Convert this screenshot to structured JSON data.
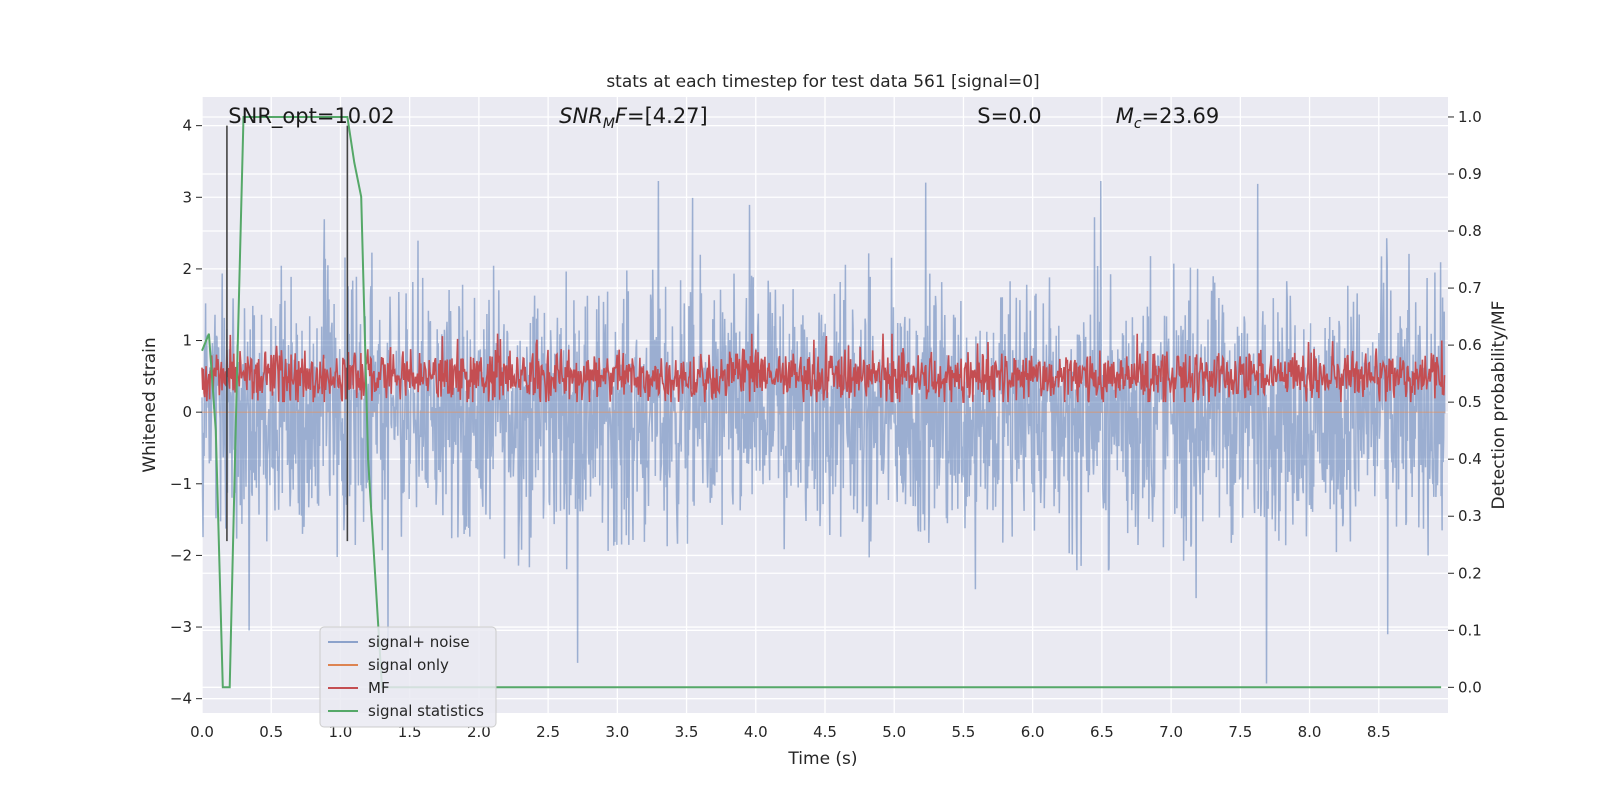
{
  "chart_data": {
    "type": "line",
    "title": "stats at each timestep for test data 561 [signal=0]",
    "xlabel": "Time (s)",
    "ylabel_left": "Whitened strain",
    "ylabel_right": "Detection probability/MF",
    "xlim": [
      0.0,
      9.0
    ],
    "ylim_left": [
      -4.2,
      4.4
    ],
    "ylim_right": [
      -0.045,
      1.035
    ],
    "x_ticks": [
      "0.0",
      "0.5",
      "1.0",
      "1.5",
      "2.0",
      "2.5",
      "3.0",
      "3.5",
      "4.0",
      "4.5",
      "5.0",
      "5.5",
      "6.0",
      "6.5",
      "7.0",
      "7.5",
      "8.0",
      "8.5"
    ],
    "y_ticks_left": [
      "4",
      "3",
      "2",
      "1",
      "0",
      "−1",
      "−2",
      "−3",
      "−4"
    ],
    "y_ticks_right": [
      "1.0",
      "0.9",
      "0.8",
      "0.7",
      "0.6",
      "0.5",
      "0.4",
      "0.3",
      "0.2",
      "0.1",
      "0.0"
    ],
    "annotations": [
      {
        "prefix": "SNR_opt",
        "eq": "=10.02"
      },
      {
        "prefix": "SNR",
        "sub": "M",
        "suffix": "F",
        "eq": "=[4.27]"
      },
      {
        "prefix": "S",
        "eq": "=0.0"
      },
      {
        "prefix": "M",
        "sub": "c",
        "eq": "=23.69"
      }
    ],
    "series": [
      {
        "name": "signal+ noise",
        "color": "#4c72b0",
        "axis": "left",
        "description": "noise band roughly between -3.8 and 4.0, mostly within ±2.2"
      },
      {
        "name": "signal only",
        "color": "#dd8452",
        "axis": "left",
        "description": "flat near zero"
      },
      {
        "name": "MF",
        "color": "#c44e52",
        "axis": "right",
        "description": "fluctuating between 0.50 and 0.62"
      },
      {
        "name": "signal statistics",
        "color": "#55a868",
        "axis": "right",
        "x": [
          0.0,
          0.05,
          0.1,
          0.15,
          0.2,
          0.25,
          0.3,
          0.4,
          0.5,
          0.6,
          0.7,
          0.8,
          0.9,
          1.0,
          1.05,
          1.1,
          1.15,
          1.2,
          1.3,
          2.0,
          3.0,
          4.0,
          5.0,
          6.0,
          7.0,
          8.0,
          8.95
        ],
        "values": [
          0.59,
          0.62,
          0.45,
          0.0,
          0.0,
          0.52,
          1.0,
          1.0,
          1.0,
          1.0,
          1.0,
          1.0,
          1.0,
          1.0,
          1.0,
          0.92,
          0.86,
          0.4,
          0.0,
          0.0,
          0.0,
          0.0,
          0.0,
          0.0,
          0.0,
          0.0,
          0.0
        ]
      }
    ],
    "vertical_markers": [
      {
        "x": 0.18,
        "color": "#444444"
      },
      {
        "x": 1.05,
        "color": "#444444"
      }
    ],
    "legend": {
      "placement": "lower-left",
      "entries": [
        "signal+ noise",
        "signal only",
        "MF",
        "signal statistics"
      ]
    }
  }
}
